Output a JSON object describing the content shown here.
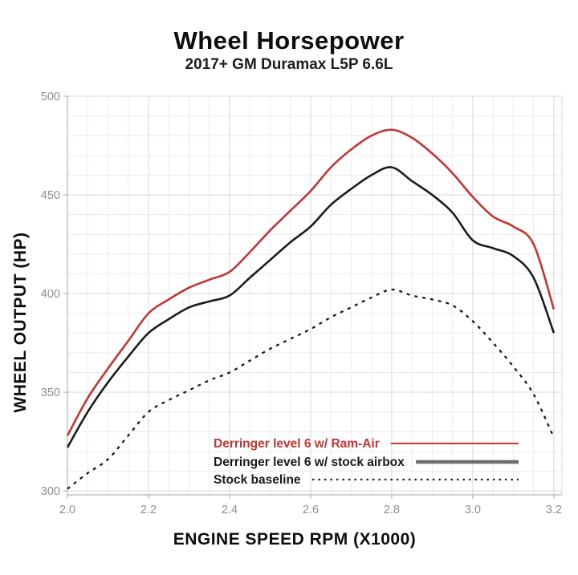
{
  "header": {
    "title": "Wheel Horsepower",
    "subtitle": "2017+ GM Duramax L5P 6.6L"
  },
  "chart_data": {
    "type": "line",
    "title": "Wheel Horsepower",
    "subtitle": "2017+ GM Duramax L5P 6.6L",
    "xlabel": "ENGINE SPEED RPM (X1000)",
    "ylabel": "WHEEL OUTPUT (HP)",
    "xlim": [
      2.0,
      3.22
    ],
    "ylim": [
      298,
      500
    ],
    "grid": true,
    "legend_position": "inside-bottom-right",
    "x_major_ticks": [
      2.0,
      2.2,
      2.4,
      2.6,
      2.8,
      3.0,
      3.2
    ],
    "x_tick_labels": [
      "2.0",
      "2.2",
      "2.4",
      "2.6",
      "2.8",
      "3.0",
      "3.2"
    ],
    "y_major_ticks": [
      300,
      350,
      400,
      450,
      500
    ],
    "y_tick_labels": [
      "300",
      "350",
      "400",
      "450",
      "500"
    ],
    "x_minor_step": 0.05,
    "y_minor_step": 10,
    "x": [
      2.0,
      2.05,
      2.1,
      2.15,
      2.2,
      2.25,
      2.3,
      2.35,
      2.4,
      2.45,
      2.5,
      2.55,
      2.6,
      2.65,
      2.7,
      2.75,
      2.8,
      2.85,
      2.9,
      2.95,
      3.0,
      3.05,
      3.1,
      3.15,
      3.2
    ],
    "series": [
      {
        "name": "Derringer level 6 w/ Ram-Air",
        "color": "#c43535",
        "line_style": "solid",
        "line_width": 2.6,
        "legend_line_color": "#c43535",
        "legend_line_width": 2,
        "values": [
          328,
          347,
          362,
          376,
          390,
          397,
          403,
          407,
          411,
          421,
          432,
          442,
          452,
          464,
          473,
          480,
          483,
          479,
          471,
          461,
          449,
          439,
          434,
          425,
          392
        ]
      },
      {
        "name": "Derringer level 6 w/ stock airbox",
        "color": "#1c1c1c",
        "line_style": "solid",
        "line_width": 2.6,
        "legend_line_color": "#6e6e6e",
        "legend_line_width": 4.5,
        "values": [
          322,
          340,
          355,
          368,
          380,
          387,
          393,
          396,
          399,
          408,
          417,
          426,
          434,
          445,
          453,
          460,
          464,
          457,
          450,
          441,
          427,
          423,
          419,
          408,
          380
        ]
      },
      {
        "name": "Stock baseline",
        "color": "#1c1c1c",
        "line_style": "dashed",
        "line_width": 2.3,
        "legend_line_color": "#222222",
        "legend_line_width": 2.3,
        "values": [
          301,
          309,
          316,
          328,
          340,
          346,
          351,
          356,
          360,
          366,
          372,
          377,
          382,
          388,
          393,
          398,
          402,
          399,
          397,
          394,
          386,
          375,
          363,
          349,
          327
        ]
      }
    ],
    "colors": {
      "background": "#ffffff",
      "grid_minor": "#ececec",
      "grid_major": "#d9d9d9",
      "axis": "#b5b5b5",
      "tick_label": "#8e8e8e",
      "text": "#0e0e0e"
    }
  }
}
